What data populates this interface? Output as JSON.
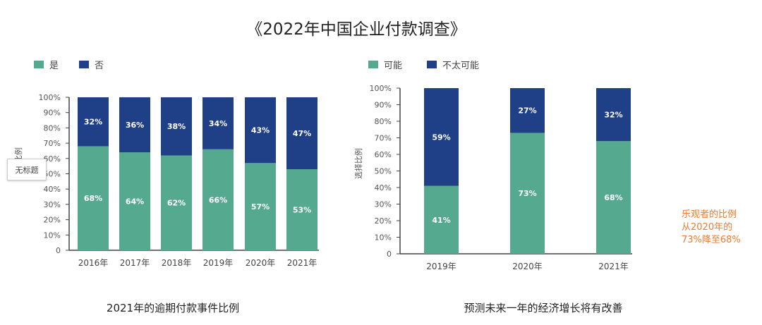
{
  "page_title": "《2022年中国企业付款调查》",
  "tooltip": "无标题",
  "annotation_lines": [
    "乐观者的比例",
    "从2020年的",
    "73%降至68%"
  ],
  "colors": {
    "green": "#55a98f",
    "navy": "#1f3f86",
    "annotation": "#f07a2a"
  },
  "chart_data": [
    {
      "type": "bar",
      "stacked": true,
      "caption": "2021年的逾期付款事件比例",
      "ylabel": "比例",
      "ylim": [
        0,
        100
      ],
      "yticks": [
        "0",
        "10%",
        "20%",
        "30%",
        "40%",
        "50%",
        "60%",
        "70%",
        "80%",
        "90%",
        "100%"
      ],
      "categories": [
        "2016年",
        "2017年",
        "2018年",
        "2019年",
        "2020年",
        "2021年"
      ],
      "legend_position": "top-left",
      "series": [
        {
          "name": "是",
          "values": [
            68,
            64,
            62,
            66,
            57,
            53
          ],
          "labels": [
            "68%",
            "64%",
            "62%",
            "66%",
            "57%",
            "53%"
          ]
        },
        {
          "name": "否",
          "values": [
            32,
            36,
            38,
            34,
            43,
            47
          ],
          "labels": [
            "32%",
            "36%",
            "38%",
            "34%",
            "43%",
            "47%"
          ]
        }
      ]
    },
    {
      "type": "bar",
      "stacked": true,
      "caption": "预测未来一年的经济增长将有改善",
      "ylabel": "选择比例",
      "ylim": [
        0,
        100
      ],
      "yticks": [
        "0",
        "10%",
        "20%",
        "30%",
        "40%",
        "50%",
        "60%",
        "70%",
        "80%",
        "90%",
        "100%"
      ],
      "categories": [
        "2019年",
        "2020年",
        "2021年"
      ],
      "legend_position": "top-left",
      "series": [
        {
          "name": "可能",
          "values": [
            41,
            73,
            68
          ],
          "labels": [
            "41%",
            "73%",
            "68%"
          ]
        },
        {
          "name": "不太可能",
          "values": [
            59,
            27,
            32
          ],
          "labels": [
            "59%",
            "27%",
            "32%"
          ]
        }
      ]
    }
  ]
}
